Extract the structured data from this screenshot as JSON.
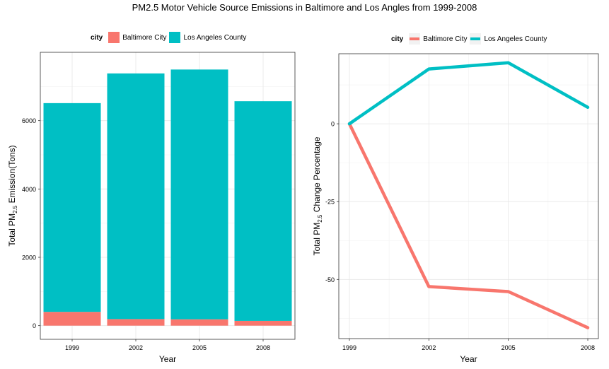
{
  "title": "PM2.5 Motor Vehicle Source Emissions in Baltimore and Los Angles from 1999-2008",
  "colors": {
    "baltimore": "#F8766D",
    "la": "#00BFC4"
  },
  "chart_data": [
    {
      "type": "bar",
      "stacked": true,
      "legend_title": "city",
      "legend_position": "top",
      "grid": true,
      "categories": [
        "1999",
        "2002",
        "2005",
        "2008"
      ],
      "series": [
        {
          "name": "Baltimore City",
          "values": [
            403,
            192,
            186,
            139
          ]
        },
        {
          "name": "Los Angeles County",
          "values": [
            6110,
            7190,
            7310,
            6430
          ]
        }
      ],
      "xlabel": "Year",
      "ylabel": {
        "pre": "Total PM",
        "sub": "2.5",
        "post": " Emission(Tons)"
      },
      "yticks": [
        0,
        2000,
        4000,
        6000
      ],
      "ylim": [
        -400,
        8000
      ]
    },
    {
      "type": "line",
      "legend_title": "city",
      "legend_position": "top",
      "grid": true,
      "x": [
        1999,
        2002,
        2005,
        2008
      ],
      "series": [
        {
          "name": "Baltimore City",
          "values": [
            0,
            -52.3,
            -53.9,
            -65.5
          ]
        },
        {
          "name": "Los Angeles County",
          "values": [
            0,
            17.6,
            19.6,
            5.3
          ]
        }
      ],
      "xlabel": "Year",
      "ylabel": {
        "pre": "Total PM",
        "sub": "2.5",
        "post": " Change Percentage"
      },
      "xticks": [
        1999,
        2002,
        2005,
        2008
      ],
      "yticks": [
        0,
        -25,
        -50
      ],
      "xlim": [
        1998.6,
        2008.4
      ],
      "ylim": [
        -69,
        22.5
      ]
    }
  ]
}
